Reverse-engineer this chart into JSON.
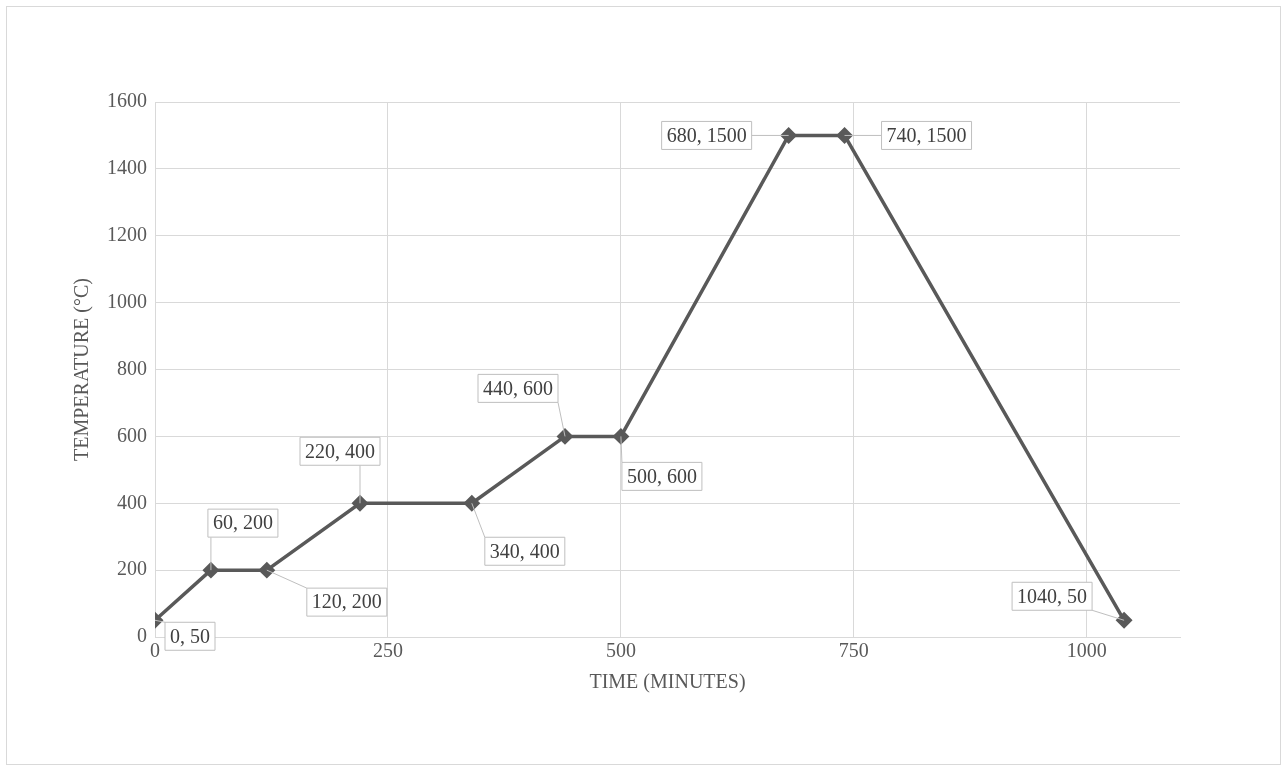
{
  "chart_data": {
    "type": "line",
    "xlabel": "TIME (MINUTES)",
    "ylabel": "TEMPERATURE (°C)",
    "x": [
      0,
      60,
      120,
      220,
      340,
      440,
      500,
      680,
      740,
      1040
    ],
    "series": [
      {
        "color": "#595959",
        "values": [
          50,
          200,
          200,
          400,
          400,
          600,
          600,
          1500,
          1500,
          50
        ],
        "value_labels": [
          "0, 50",
          "60, 200",
          "120, 200",
          "220, 400",
          "340, 400",
          "440, 600",
          "500, 600",
          "680, 1500",
          "740, 1500",
          "1040, 50"
        ]
      }
    ],
    "xlim": [
      0,
      1100
    ],
    "xticks": [
      0,
      250,
      500,
      750,
      1000
    ],
    "ylim": [
      0,
      1600
    ],
    "yticks": [
      0,
      200,
      400,
      600,
      800,
      1000,
      1200,
      1400,
      1600
    ],
    "grid": true,
    "legend": false,
    "marker": "diamond",
    "line_style": "solid"
  }
}
